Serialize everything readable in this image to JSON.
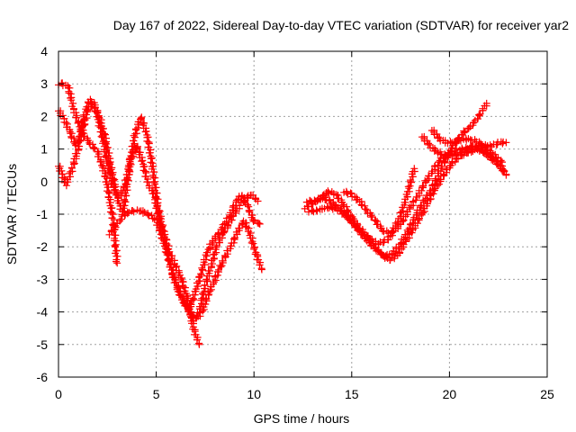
{
  "chart_data": {
    "type": "scatter",
    "title": "Day 167 of 2022, Sidereal Day-to-day VTEC variation (SDTVAR) for receiver yar2",
    "xlabel": "GPS time / hours",
    "ylabel": "SDTVAR / TECUs",
    "xlim": [
      0,
      25
    ],
    "ylim": [
      -6,
      4
    ],
    "x_ticks": [
      0,
      5,
      10,
      15,
      20,
      25
    ],
    "x_tick_labels": [
      "0",
      "5",
      "10",
      "15",
      "20",
      "25"
    ],
    "y_ticks": [
      -6,
      -5,
      -4,
      -3,
      -2,
      -1,
      0,
      1,
      2,
      3,
      4
    ],
    "y_tick_labels": [
      "-6",
      "-5",
      "-4",
      "-3",
      "-2",
      "-1",
      "0",
      "1",
      "2",
      "3",
      "4"
    ],
    "grid": true,
    "marker": "+",
    "color": "#ff0000",
    "series": [
      {
        "name": "s1",
        "x": [
          0.0,
          0.2,
          0.5,
          0.8,
          1.2,
          1.6,
          2.0,
          2.4,
          2.8,
          3.0
        ],
        "y": [
          3.0,
          3.0,
          2.9,
          2.2,
          1.5,
          1.2,
          0.9,
          0.2,
          -1.2,
          -2.5
        ]
      },
      {
        "name": "s2",
        "x": [
          0.0,
          0.3,
          0.6,
          0.9,
          1.2,
          1.5,
          1.8,
          2.1,
          2.4,
          2.7,
          3.0,
          3.3,
          3.6,
          3.9,
          4.2,
          4.5,
          4.8,
          5.1,
          5.4,
          5.7,
          6.0,
          6.3,
          6.6,
          6.9,
          7.2
        ],
        "y": [
          2.2,
          1.9,
          1.5,
          1.1,
          1.5,
          2.2,
          2.4,
          2.0,
          1.3,
          0.4,
          -0.5,
          -1.0,
          0.3,
          1.4,
          2.0,
          1.5,
          0.5,
          -0.8,
          -1.6,
          -2.2,
          -2.6,
          -3.0,
          -3.6,
          -4.5,
          -5.0
        ]
      },
      {
        "name": "s3",
        "x": [
          0.0,
          0.2,
          0.4,
          0.7,
          1.0,
          1.3,
          1.6,
          1.9,
          2.2,
          2.5,
          2.8,
          3.1,
          3.4,
          3.7,
          4.0,
          4.3,
          4.6,
          4.9,
          5.2,
          5.5,
          5.8,
          6.1,
          6.4,
          6.7,
          7.0,
          7.3,
          7.6,
          7.9,
          8.2,
          8.5,
          8.8,
          9.1,
          9.4,
          9.7,
          10.0,
          10.3
        ],
        "y": [
          0.5,
          0.2,
          -0.1,
          0.4,
          1.0,
          2.0,
          2.5,
          2.2,
          1.5,
          0.6,
          -0.2,
          -0.5,
          -0.1,
          0.7,
          1.1,
          0.6,
          -0.1,
          -0.4,
          -1.3,
          -2.0,
          -2.8,
          -3.3,
          -3.7,
          -3.9,
          -3.4,
          -2.8,
          -2.2,
          -1.8,
          -1.6,
          -1.3,
          -1.0,
          -0.6,
          -0.4,
          -0.8,
          -1.2,
          -1.3
        ]
      },
      {
        "name": "s4",
        "x": [
          2.6,
          3.0,
          3.4,
          3.8,
          4.2,
          4.6,
          5.0,
          5.3,
          5.6,
          5.9,
          6.2,
          6.5,
          6.8,
          7.1,
          7.4,
          7.7,
          8.0,
          8.3,
          8.6,
          8.9,
          9.2,
          9.5,
          9.8,
          10.1,
          10.4
        ],
        "y": [
          -1.6,
          -1.3,
          -1.0,
          -0.9,
          -0.9,
          -1.0,
          -1.2,
          -1.7,
          -2.3,
          -2.9,
          -3.4,
          -3.8,
          -4.1,
          -4.2,
          -3.9,
          -3.4,
          -3.0,
          -2.6,
          -2.2,
          -1.9,
          -1.5,
          -1.2,
          -1.6,
          -2.2,
          -2.7
        ]
      },
      {
        "name": "s5",
        "x": [
          6.6,
          6.9,
          7.2,
          7.5,
          7.8,
          8.1,
          8.4,
          8.7,
          9.0,
          9.3,
          9.6,
          9.9,
          10.2
        ],
        "y": [
          -3.8,
          -4.3,
          -4.0,
          -3.2,
          -2.6,
          -2.0,
          -1.6,
          -1.3,
          -1.0,
          -0.7,
          -0.5,
          -0.4,
          -0.6
        ]
      },
      {
        "name": "s6",
        "x": [
          12.6,
          13.0,
          13.4,
          13.8,
          14.2,
          14.6,
          15.0,
          15.4,
          15.8,
          16.2,
          16.6,
          17.0,
          17.4,
          17.8,
          18.2,
          18.6,
          19.0,
          19.4,
          19.8,
          20.2,
          20.6,
          21.0,
          21.4,
          21.8,
          22.2,
          22.6,
          22.9
        ],
        "y": [
          -0.8,
          -0.7,
          -0.5,
          -0.3,
          -0.4,
          -0.7,
          -1.1,
          -1.4,
          -1.7,
          -2.0,
          -2.3,
          -2.4,
          -2.2,
          -1.8,
          -1.4,
          -1.0,
          -0.5,
          -0.1,
          0.3,
          0.6,
          0.8,
          0.9,
          1.0,
          0.9,
          0.7,
          0.5,
          0.2
        ]
      },
      {
        "name": "s7",
        "x": [
          12.7,
          13.1,
          13.5,
          13.9,
          14.3,
          14.7,
          15.1,
          15.5,
          15.9,
          16.3,
          16.7,
          17.1,
          17.5,
          17.9,
          18.3,
          18.7,
          19.1,
          19.5,
          19.9,
          20.3,
          20.7,
          21.1,
          21.5,
          21.9
        ],
        "y": [
          -0.6,
          -0.6,
          -0.5,
          -0.6,
          -0.8,
          -1.0,
          -1.3,
          -1.6,
          -1.9,
          -2.1,
          -2.3,
          -2.2,
          -1.9,
          -1.5,
          -1.0,
          -0.6,
          -0.2,
          0.3,
          0.8,
          1.2,
          1.5,
          1.7,
          2.0,
          2.4
        ]
      },
      {
        "name": "s8",
        "x": [
          12.8,
          13.2,
          13.6,
          14.0,
          14.4,
          14.8,
          15.2,
          15.6,
          16.0,
          16.4,
          16.8,
          17.2,
          17.6,
          18.0,
          18.4,
          18.8,
          19.2,
          19.6,
          20.0,
          20.4,
          20.8,
          21.2,
          21.6,
          22.0,
          22.4,
          22.8
        ],
        "y": [
          -0.9,
          -0.9,
          -0.8,
          -0.8,
          -0.9,
          -1.1,
          -1.4,
          -1.6,
          -1.8,
          -1.9,
          -1.8,
          -1.5,
          -1.2,
          -0.8,
          -0.4,
          0.0,
          0.4,
          0.7,
          0.9,
          1.0,
          1.0,
          1.1,
          1.0,
          0.8,
          0.6,
          0.3
        ]
      },
      {
        "name": "s9",
        "x": [
          14.6,
          15.0,
          15.4,
          15.8,
          16.2,
          16.6,
          17.0,
          17.4,
          17.8,
          18.2
        ],
        "y": [
          -0.3,
          -0.4,
          -0.6,
          -0.9,
          -1.2,
          -1.5,
          -1.6,
          -1.2,
          -0.5,
          0.4
        ]
      },
      {
        "name": "s10",
        "x": [
          18.6,
          19.0,
          19.4,
          19.8,
          20.2,
          20.6,
          21.0,
          21.4,
          21.8,
          22.2,
          22.6,
          22.9
        ],
        "y": [
          1.4,
          1.1,
          0.9,
          0.8,
          0.8,
          0.9,
          1.0,
          1.1,
          1.1,
          1.1,
          1.2,
          1.2
        ]
      },
      {
        "name": "s11",
        "x": [
          19.1,
          19.5,
          19.9,
          20.3,
          20.7,
          21.1,
          21.5,
          21.9,
          22.3,
          22.7
        ],
        "y": [
          1.6,
          1.3,
          1.2,
          1.2,
          1.3,
          1.3,
          1.2,
          1.0,
          0.8,
          0.6
        ]
      }
    ]
  }
}
